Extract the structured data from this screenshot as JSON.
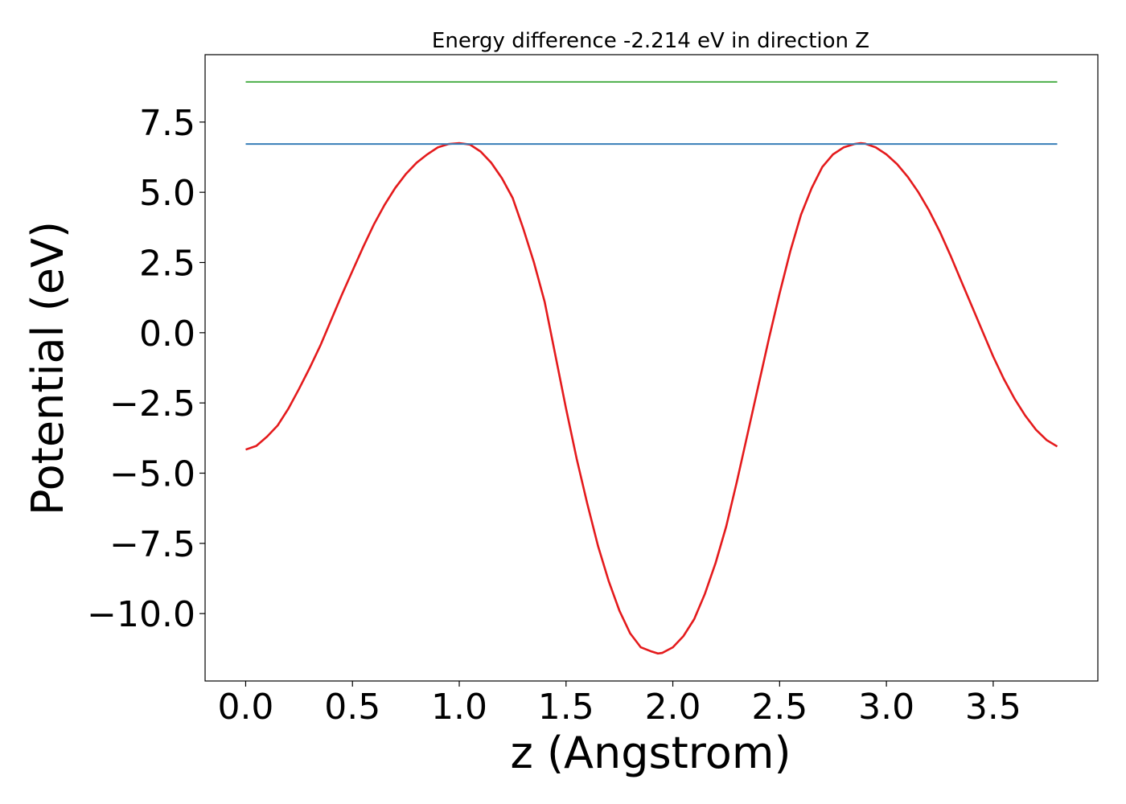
{
  "chart_data": {
    "type": "line",
    "title": "Energy difference -2.214 eV in direction Z",
    "xlabel": "z (Angstrom)",
    "ylabel": "Potential (eV)",
    "xlim": [
      -0.19,
      3.99
    ],
    "ylim": [
      -12.4,
      9.9
    ],
    "xticks": [
      0.0,
      0.5,
      1.0,
      1.5,
      2.0,
      2.5,
      3.0,
      3.5
    ],
    "xtick_labels": [
      "0.0",
      "0.5",
      "1.0",
      "1.5",
      "2.0",
      "2.5",
      "3.0",
      "3.5"
    ],
    "yticks": [
      -10.0,
      -7.5,
      -5.0,
      -2.5,
      0.0,
      2.5,
      5.0,
      7.5
    ],
    "ytick_labels": [
      "−10.0",
      "−7.5",
      "−5.0",
      "−2.5",
      "0.0",
      "2.5",
      "5.0",
      "7.5"
    ],
    "grid": false,
    "series": [
      {
        "color": "#e41a1c",
        "x": [
          0.0,
          0.05,
          0.1,
          0.15,
          0.2,
          0.25,
          0.3,
          0.35,
          0.4,
          0.45,
          0.5,
          0.55,
          0.6,
          0.65,
          0.7,
          0.75,
          0.8,
          0.85,
          0.9,
          0.95,
          1.0,
          1.05,
          1.1,
          1.15,
          1.2,
          1.25,
          1.3,
          1.35,
          1.4,
          1.45,
          1.5,
          1.55,
          1.6,
          1.65,
          1.7,
          1.75,
          1.8,
          1.85,
          1.9,
          1.93,
          1.95,
          2.0,
          2.05,
          2.1,
          2.15,
          2.2,
          2.25,
          2.3,
          2.35,
          2.4,
          2.45,
          2.5,
          2.55,
          2.6,
          2.65,
          2.7,
          2.75,
          2.8,
          2.85,
          2.88,
          2.9,
          2.95,
          3.0,
          3.05,
          3.1,
          3.15,
          3.2,
          3.25,
          3.3,
          3.35,
          3.4,
          3.45,
          3.5,
          3.55,
          3.6,
          3.65,
          3.7,
          3.75,
          3.8
        ],
        "y": [
          -4.16,
          -4.03,
          -3.7,
          -3.3,
          -2.7,
          -2.0,
          -1.25,
          -0.45,
          0.45,
          1.35,
          2.2,
          3.05,
          3.85,
          4.55,
          5.15,
          5.65,
          6.05,
          6.35,
          6.6,
          6.72,
          6.75,
          6.7,
          6.45,
          6.05,
          5.5,
          4.8,
          3.7,
          2.5,
          1.1,
          -0.8,
          -2.7,
          -4.5,
          -6.1,
          -7.6,
          -8.85,
          -9.9,
          -10.7,
          -11.2,
          -11.35,
          -11.42,
          -11.4,
          -11.2,
          -10.8,
          -10.2,
          -9.3,
          -8.2,
          -6.9,
          -5.3,
          -3.6,
          -1.9,
          -0.2,
          1.4,
          2.9,
          4.2,
          5.15,
          5.9,
          6.35,
          6.6,
          6.72,
          6.75,
          6.73,
          6.6,
          6.35,
          6.0,
          5.55,
          5.0,
          4.35,
          3.6,
          2.75,
          1.85,
          0.95,
          0.05,
          -0.85,
          -1.65,
          -2.35,
          -2.95,
          -3.45,
          -3.82,
          -4.05
        ]
      },
      {
        "color": "#377eb8",
        "x": [
          0.0,
          3.8
        ],
        "y": [
          6.72,
          6.72
        ]
      },
      {
        "color": "#4daf4a",
        "x": [
          0.0,
          3.8
        ],
        "y": [
          8.93,
          8.93
        ]
      }
    ]
  }
}
